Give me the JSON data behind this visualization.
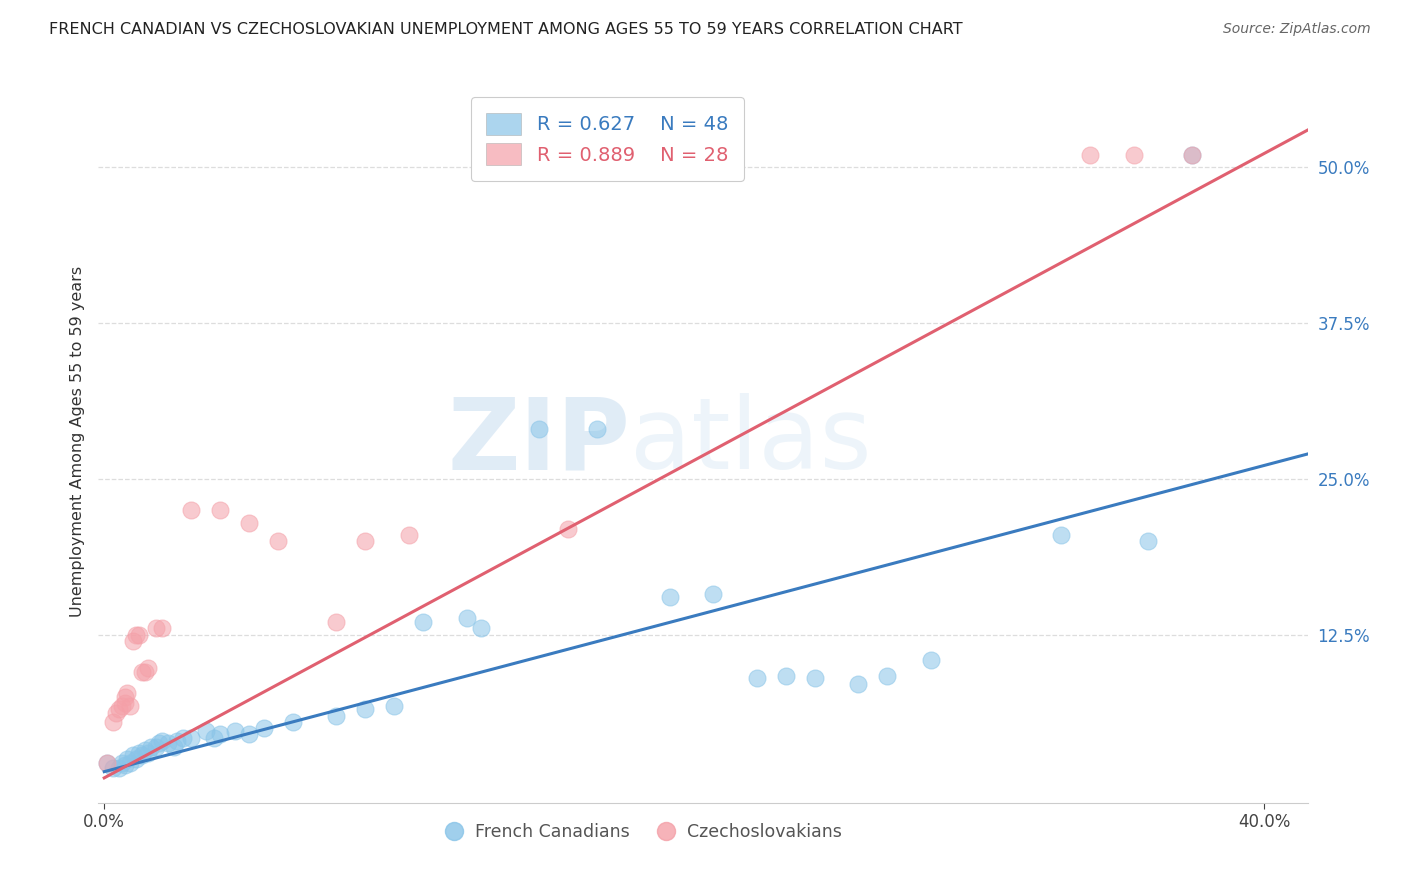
{
  "title": "FRENCH CANADIAN VS CZECHOSLOVAKIAN UNEMPLOYMENT AMONG AGES 55 TO 59 YEARS CORRELATION CHART",
  "source": "Source: ZipAtlas.com",
  "ylabel": "Unemployment Among Ages 55 to 59 years",
  "xlim": [
    -0.002,
    0.415
  ],
  "ylim": [
    -0.01,
    0.57
  ],
  "xticks": [
    0.0,
    0.4
  ],
  "xtick_labels": [
    "0.0%",
    "40.0%"
  ],
  "yticks": [
    0.125,
    0.25,
    0.375,
    0.5
  ],
  "ytick_labels": [
    "12.5%",
    "25.0%",
    "37.5%",
    "50.0%"
  ],
  "blue_R": 0.627,
  "blue_N": 48,
  "pink_R": 0.889,
  "pink_N": 28,
  "blue_color": "#89c4e8",
  "pink_color": "#f4a0a8",
  "blue_line_color": "#3a7bbf",
  "pink_line_color": "#e06070",
  "watermark_zip": "ZIP",
  "watermark_atlas": "atlas",
  "blue_scatter": [
    [
      0.001,
      0.022
    ],
    [
      0.003,
      0.018
    ],
    [
      0.005,
      0.018
    ],
    [
      0.006,
      0.022
    ],
    [
      0.007,
      0.02
    ],
    [
      0.008,
      0.025
    ],
    [
      0.009,
      0.022
    ],
    [
      0.01,
      0.028
    ],
    [
      0.011,
      0.025
    ],
    [
      0.012,
      0.03
    ],
    [
      0.013,
      0.028
    ],
    [
      0.014,
      0.032
    ],
    [
      0.015,
      0.03
    ],
    [
      0.016,
      0.035
    ],
    [
      0.018,
      0.035
    ],
    [
      0.019,
      0.038
    ],
    [
      0.02,
      0.04
    ],
    [
      0.022,
      0.038
    ],
    [
      0.024,
      0.035
    ],
    [
      0.025,
      0.04
    ],
    [
      0.027,
      0.042
    ],
    [
      0.03,
      0.042
    ],
    [
      0.035,
      0.048
    ],
    [
      0.038,
      0.042
    ],
    [
      0.04,
      0.045
    ],
    [
      0.045,
      0.048
    ],
    [
      0.05,
      0.045
    ],
    [
      0.055,
      0.05
    ],
    [
      0.065,
      0.055
    ],
    [
      0.08,
      0.06
    ],
    [
      0.09,
      0.065
    ],
    [
      0.1,
      0.068
    ],
    [
      0.11,
      0.135
    ],
    [
      0.125,
      0.138
    ],
    [
      0.13,
      0.13
    ],
    [
      0.15,
      0.29
    ],
    [
      0.17,
      0.29
    ],
    [
      0.195,
      0.155
    ],
    [
      0.21,
      0.158
    ],
    [
      0.225,
      0.09
    ],
    [
      0.235,
      0.092
    ],
    [
      0.245,
      0.09
    ],
    [
      0.26,
      0.085
    ],
    [
      0.27,
      0.092
    ],
    [
      0.285,
      0.105
    ],
    [
      0.33,
      0.205
    ],
    [
      0.36,
      0.2
    ],
    [
      0.375,
      0.51
    ]
  ],
  "pink_scatter": [
    [
      0.001,
      0.022
    ],
    [
      0.003,
      0.055
    ],
    [
      0.004,
      0.062
    ],
    [
      0.005,
      0.065
    ],
    [
      0.006,
      0.068
    ],
    [
      0.007,
      0.07
    ],
    [
      0.007,
      0.075
    ],
    [
      0.008,
      0.078
    ],
    [
      0.009,
      0.068
    ],
    [
      0.01,
      0.12
    ],
    [
      0.011,
      0.125
    ],
    [
      0.012,
      0.125
    ],
    [
      0.013,
      0.095
    ],
    [
      0.014,
      0.095
    ],
    [
      0.015,
      0.098
    ],
    [
      0.018,
      0.13
    ],
    [
      0.02,
      0.13
    ],
    [
      0.03,
      0.225
    ],
    [
      0.04,
      0.225
    ],
    [
      0.05,
      0.215
    ],
    [
      0.06,
      0.2
    ],
    [
      0.08,
      0.135
    ],
    [
      0.09,
      0.2
    ],
    [
      0.105,
      0.205
    ],
    [
      0.16,
      0.21
    ],
    [
      0.34,
      0.51
    ],
    [
      0.355,
      0.51
    ],
    [
      0.375,
      0.51
    ]
  ],
  "blue_line_x": [
    0.0,
    0.415
  ],
  "blue_line_y": [
    0.015,
    0.27
  ],
  "pink_line_x": [
    0.0,
    0.415
  ],
  "pink_line_y": [
    0.01,
    0.53
  ],
  "grid_yticks": [
    0.125,
    0.25,
    0.375,
    0.5
  ],
  "grid_color": "#dddddd",
  "spine_color": "#cccccc"
}
